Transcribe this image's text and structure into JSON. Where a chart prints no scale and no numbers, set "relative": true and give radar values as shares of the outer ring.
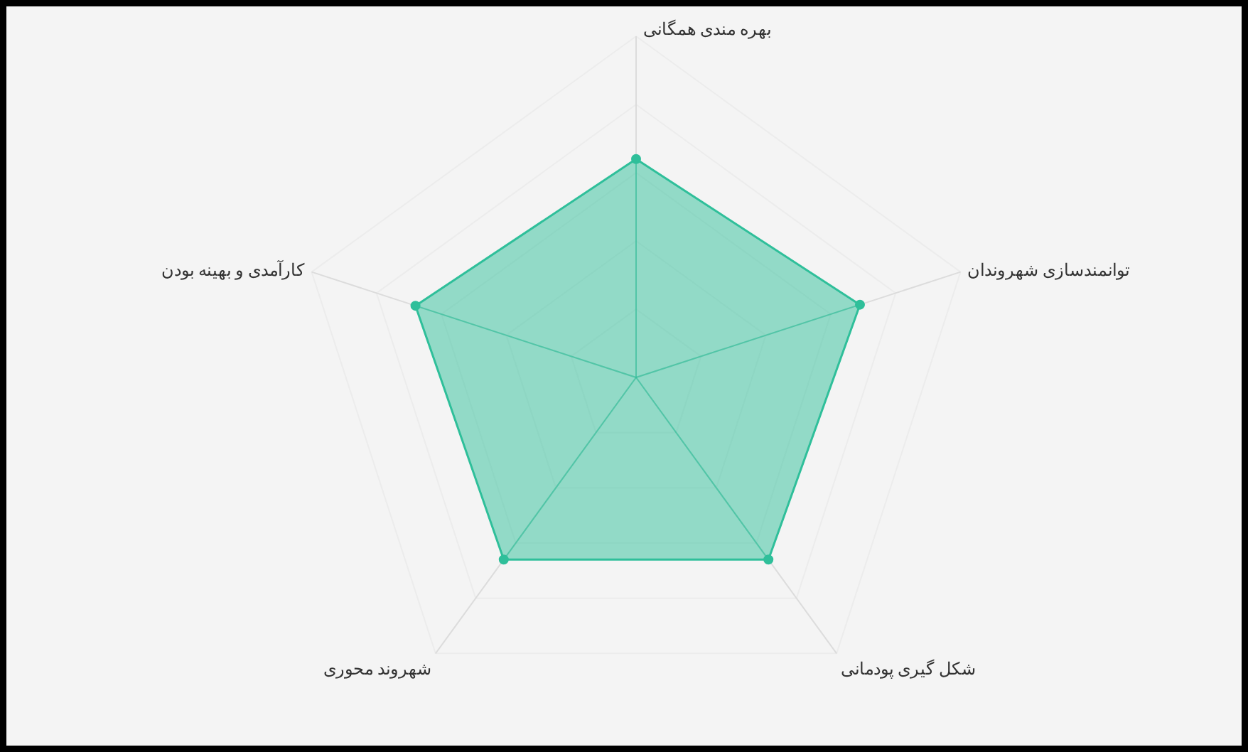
{
  "chart_data": {
    "type": "radar",
    "relative": true,
    "grid": true,
    "marker": "circle",
    "categories": [
      "بهره مندی همگانی",
      "توانمندسازی شهروندان",
      "شکل گیری پودمانی",
      "شهروند محوری",
      "کارآمدی و بهینه بودن"
    ],
    "series": [
      {
        "color": "#2fbf9a",
        "values": [
          0.64,
          0.69,
          0.66,
          0.66,
          0.68
        ]
      }
    ]
  }
}
